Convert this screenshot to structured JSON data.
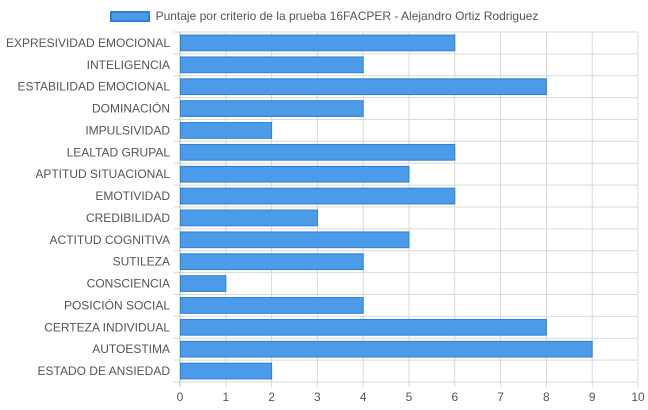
{
  "chart_data": {
    "type": "bar",
    "orientation": "horizontal",
    "legend": {
      "position": "top",
      "label": "Puntaje por criterio de la prueba 16FACPER - Alejandro Ortiz Rodriguez"
    },
    "categories": [
      "EXPRESIVIDAD EMOCIONAL",
      "INTELIGENCIA",
      "ESTABILIDAD EMOCIONAL",
      "DOMINACIÓN",
      "IMPULSIVIDAD",
      "LEALTAD GRUPAL",
      "APTITUD SITUACIONAL",
      "EMOTIVIDAD",
      "CREDIBILIDAD",
      "ACTITUD COGNITIVA",
      "SUTILEZA",
      "CONSCIENCIA",
      "POSICIÓN SOCIAL",
      "CERTEZA INDIVIDUAL",
      "AUTOESTIMA",
      "ESTADO DE ANSIEDAD"
    ],
    "series": [
      {
        "name": "Puntaje por criterio de la prueba 16FACPER - Alejandro Ortiz Rodriguez",
        "values": [
          6,
          4,
          8,
          4,
          2,
          6,
          5,
          6,
          3,
          5,
          4,
          1,
          4,
          8,
          9,
          2
        ]
      }
    ],
    "xlim": [
      0,
      10
    ],
    "xticks": [
      "0",
      "1",
      "2",
      "3",
      "4",
      "5",
      "6",
      "7",
      "8",
      "9",
      "10"
    ],
    "grid": true,
    "colors": {
      "bar_fill": "#4b9be8",
      "bar_border": "#2f7fd6",
      "grid": "#d9d9d9",
      "text": "#555555"
    }
  }
}
